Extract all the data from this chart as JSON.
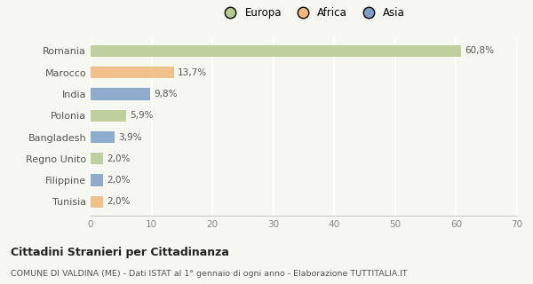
{
  "categories": [
    "Romania",
    "Marocco",
    "India",
    "Polonia",
    "Bangladesh",
    "Regno Unito",
    "Filippine",
    "Tunisia"
  ],
  "values": [
    60.8,
    13.7,
    9.8,
    5.9,
    3.9,
    2.0,
    2.0,
    2.0
  ],
  "labels": [
    "60,8%",
    "13,7%",
    "9,8%",
    "5,9%",
    "3,9%",
    "2,0%",
    "2,0%",
    "2,0%"
  ],
  "colors": [
    "#b5c98e",
    "#f0b87a",
    "#7b9fc7",
    "#b5c98e",
    "#7b9fc7",
    "#b5c98e",
    "#7b9fc7",
    "#f0b87a"
  ],
  "legend_labels": [
    "Europa",
    "Africa",
    "Asia"
  ],
  "legend_colors": [
    "#b5c98e",
    "#f0b87a",
    "#7b9fc7"
  ],
  "xlim": [
    0,
    70
  ],
  "xticks": [
    0,
    10,
    20,
    30,
    40,
    50,
    60,
    70
  ],
  "title": "Cittadini Stranieri per Cittadinanza",
  "subtitle": "COMUNE DI VALDINA (ME) - Dati ISTAT al 1° gennaio di ogni anno - Elaborazione TUTTITALIA.IT",
  "background_color": "#f7f7f2",
  "grid_color": "#ffffff",
  "bar_height": 0.55
}
